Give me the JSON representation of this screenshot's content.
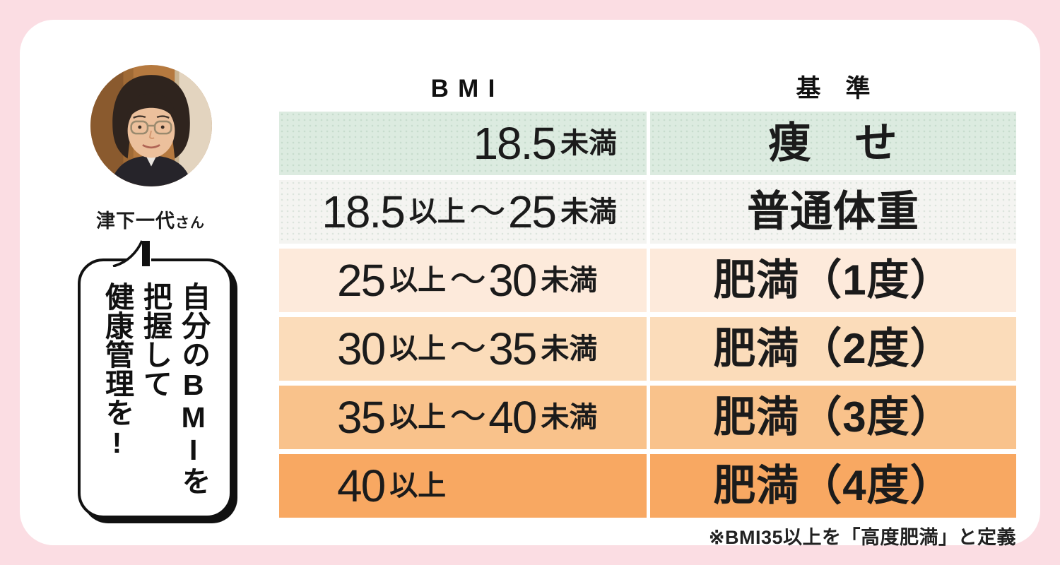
{
  "profile": {
    "name": "津下一代",
    "honorific": "さん"
  },
  "speech_bubble": {
    "text": "自分のBMIを\n把握して\n健康管理を!"
  },
  "table": {
    "header_bmi": "BMI",
    "header_criteria": "基　準",
    "rows": [
      {
        "bmi": [
          {
            "t": "18.5",
            "s": "num"
          },
          {
            "t": "未満",
            "s": "kanji"
          }
        ],
        "criteria": "痩　せ",
        "align": "right",
        "bg": "#dcebe0",
        "dotted": true
      },
      {
        "bmi": [
          {
            "t": "18.5",
            "s": "num"
          },
          {
            "t": "以上",
            "s": "kanji"
          },
          {
            "t": "〜",
            "s": "tilde"
          },
          {
            "t": "25",
            "s": "num"
          },
          {
            "t": "未満",
            "s": "kanji"
          }
        ],
        "criteria": "普通体重",
        "align": "right",
        "bg": "#f4f4f1",
        "dotted": true
      },
      {
        "bmi": [
          {
            "t": "25",
            "s": "num"
          },
          {
            "t": "以上",
            "s": "kanji"
          },
          {
            "t": "〜",
            "s": "tilde"
          },
          {
            "t": "30",
            "s": "num"
          },
          {
            "t": "未満",
            "s": "kanji"
          }
        ],
        "criteria": "肥満（1度）",
        "align": "left",
        "bg": "#fdeadb",
        "dotted": false
      },
      {
        "bmi": [
          {
            "t": "30",
            "s": "num"
          },
          {
            "t": "以上",
            "s": "kanji"
          },
          {
            "t": "〜",
            "s": "tilde"
          },
          {
            "t": "35",
            "s": "num"
          },
          {
            "t": "未満",
            "s": "kanji"
          }
        ],
        "criteria": "肥満（2度）",
        "align": "left",
        "bg": "#fbdcba",
        "dotted": false
      },
      {
        "bmi": [
          {
            "t": "35",
            "s": "num"
          },
          {
            "t": "以上",
            "s": "kanji"
          },
          {
            "t": "〜",
            "s": "tilde"
          },
          {
            "t": "40",
            "s": "num"
          },
          {
            "t": "未満",
            "s": "kanji"
          }
        ],
        "criteria": "肥満（3度）",
        "align": "left",
        "bg": "#f9c28b",
        "dotted": false
      },
      {
        "bmi": [
          {
            "t": "40",
            "s": "num"
          },
          {
            "t": "以上",
            "s": "kanji"
          }
        ],
        "criteria": "肥満（4度）",
        "align": "left",
        "bg": "#f8a862",
        "dotted": false
      }
    ]
  },
  "footnote": "※BMI35以上を「高度肥満」と定義",
  "colors": {
    "page_background": "#fbdde3",
    "card_background": "#ffffff",
    "text": "#1b1b1b",
    "row_underweight": "#dcebe0",
    "row_normal": "#f4f4f1",
    "row_obese1": "#fdeadb",
    "row_obese2": "#fbdcba",
    "row_obese3": "#f9c28b",
    "row_obese4": "#f8a862"
  },
  "chart_data": {
    "type": "table",
    "title": "自分のBMIを把握して健康管理を!",
    "columns": [
      "BMI",
      "基準"
    ],
    "rows": [
      [
        "18.5未満",
        "痩せ"
      ],
      [
        "18.5以上〜25未満",
        "普通体重"
      ],
      [
        "25以上〜30未満",
        "肥満（1度）"
      ],
      [
        "30以上〜35未満",
        "肥満（2度）"
      ],
      [
        "35以上〜40未満",
        "肥満（3度）"
      ],
      [
        "40以上",
        "肥満（4度）"
      ]
    ],
    "note": "※BMI35以上を「高度肥満」と定義",
    "speaker": "津下一代さん"
  }
}
